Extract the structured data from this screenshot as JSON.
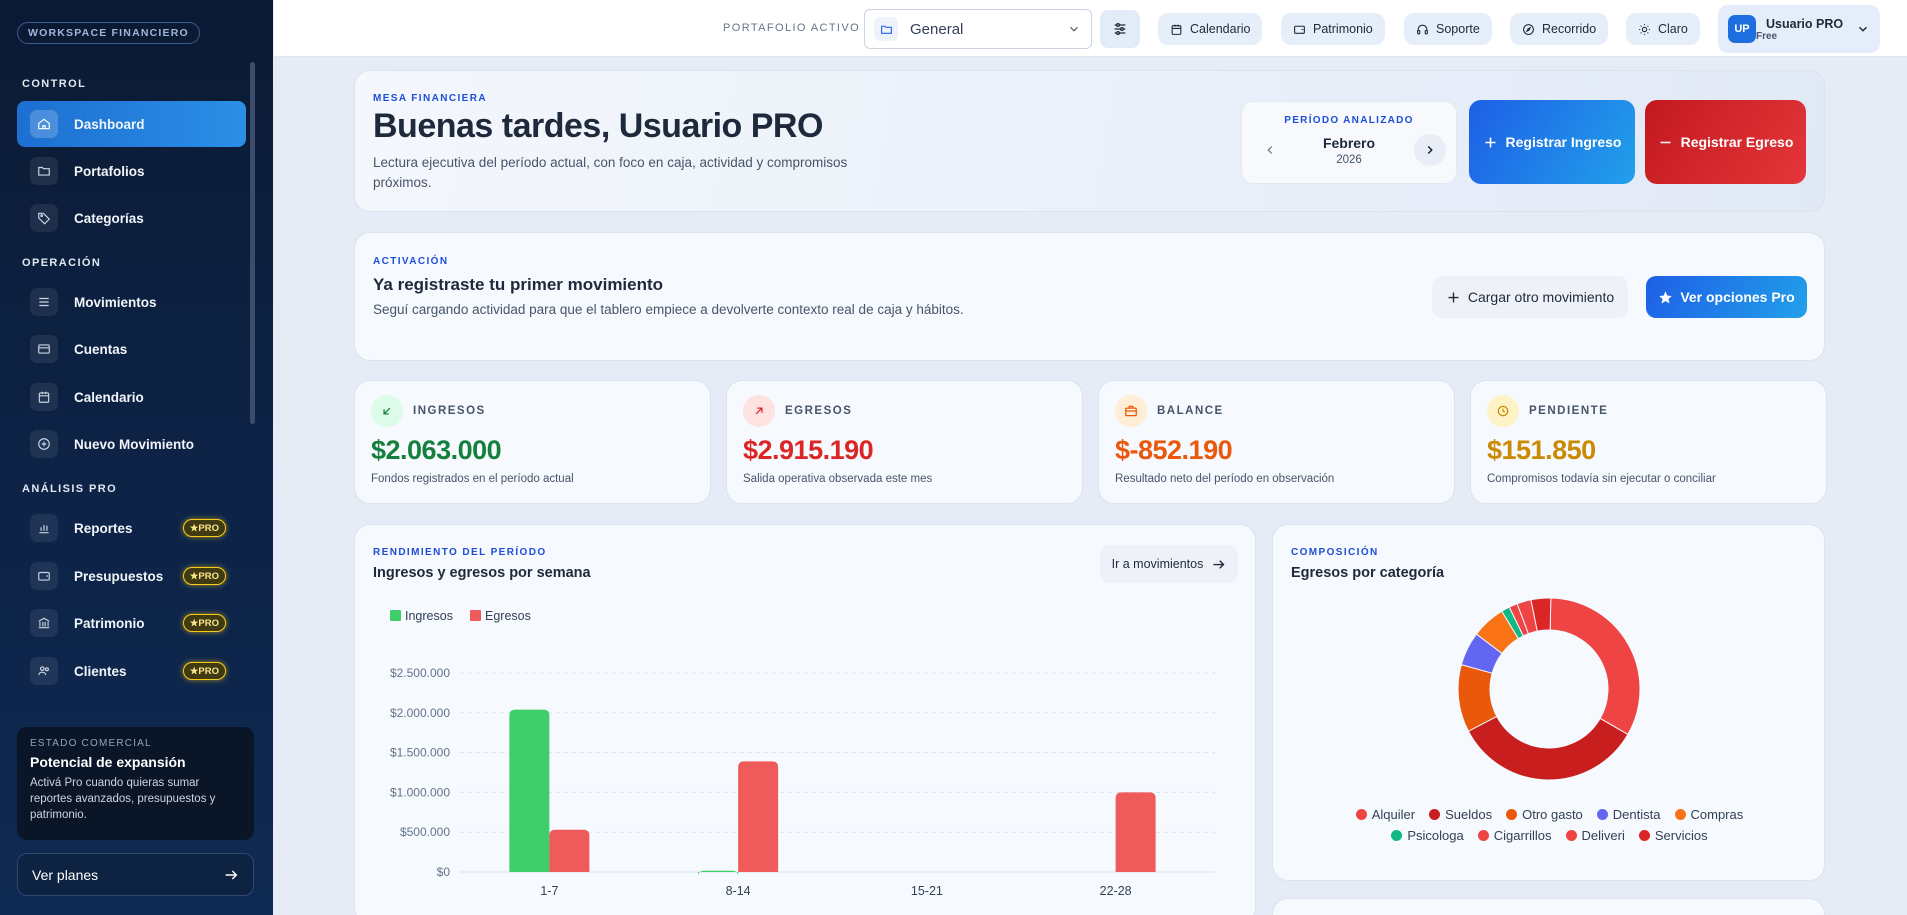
{
  "sidebar": {
    "workspace": "WORKSPACE FINANCIERO",
    "sections": {
      "control": "CONTROL",
      "operacion": "OPERACIÓN",
      "analisis": "ANÁLISIS PRO"
    },
    "items": [
      {
        "label": "Dashboard",
        "icon": "home-icon",
        "active": true
      },
      {
        "label": "Portafolios",
        "icon": "folder-icon"
      },
      {
        "label": "Categorías",
        "icon": "tag-icon"
      },
      {
        "label": "Movimientos",
        "icon": "list-icon"
      },
      {
        "label": "Cuentas",
        "icon": "card-icon"
      },
      {
        "label": "Calendario",
        "icon": "calendar-icon"
      },
      {
        "label": "Nuevo Movimiento",
        "icon": "plus-circle-icon"
      },
      {
        "label": "Reportes",
        "icon": "bar-chart-icon",
        "badge": "PRO"
      },
      {
        "label": "Presupuestos",
        "icon": "wallet-icon",
        "badge": "PRO"
      },
      {
        "label": "Patrimonio",
        "icon": "bank-icon",
        "badge": "PRO"
      },
      {
        "label": "Clientes",
        "icon": "users-icon",
        "badge": "PRO"
      }
    ],
    "promo": {
      "kicker": "ESTADO COMERCIAL",
      "title": "Potencial de expansión",
      "text": "Activá Pro cuando quieras sumar reportes avanzados, presupuestos y patrimonio."
    },
    "plans_label": "Ver planes"
  },
  "topbar": {
    "portfolio_label": "PORTAFOLIO ACTIVO",
    "portfolio_value": "General",
    "pills": [
      "Calendario",
      "Patrimonio",
      "Soporte",
      "Recorrido",
      "Claro"
    ],
    "user": {
      "initials": "UP",
      "name": "Usuario PRO",
      "plan": "Free"
    }
  },
  "hero": {
    "eyebrow": "MESA FINANCIERA",
    "title": "Buenas tardes, Usuario PRO",
    "subtitle": "Lectura ejecutiva del período actual, con foco en caja, actividad y compromisos próximos.",
    "period_label": "PERÍODO ANALIZADO",
    "period_month": "Febrero",
    "period_year": "2026",
    "income_button": "Registrar Ingreso",
    "expense_button": "Registrar Egreso"
  },
  "activation": {
    "eyebrow": "ACTIVACIÓN",
    "title": "Ya registraste tu primer movimiento",
    "text": "Seguí cargando actividad para que el tablero empiece a devolverte contexto real de caja y hábitos.",
    "load_button": "Cargar otro movimiento",
    "pro_button": "Ver opciones Pro"
  },
  "kpis": [
    {
      "label": "INGRESOS",
      "value": "$2.063.000",
      "desc": "Fondos registrados en el período actual",
      "color": "#15803d",
      "bg": "#dcfce7"
    },
    {
      "label": "EGRESOS",
      "value": "$2.915.190",
      "desc": "Salida operativa observada este mes",
      "color": "#dc2626",
      "bg": "#fee2e2"
    },
    {
      "label": "BALANCE",
      "value": "$-852.190",
      "desc": "Resultado neto del período en observación",
      "color": "#ea580c",
      "bg": "#ffedd5"
    },
    {
      "label": "PENDIENTE",
      "value": "$151.850",
      "desc": "Compromisos todavía sin ejecutar o conciliar",
      "color": "#ca8a04",
      "bg": "#fef3c7"
    }
  ],
  "weekly": {
    "eyebrow": "RENDIMIENTO DEL PERÍODO",
    "title": "Ingresos y egresos por semana",
    "button": "Ir a movimientos"
  },
  "composition": {
    "eyebrow": "COMPOSICIÓN",
    "title": "Egresos por categoría"
  },
  "chart_data": [
    {
      "type": "bar",
      "categories": [
        "1-7",
        "8-14",
        "15-21",
        "22-28"
      ],
      "series": [
        {
          "name": "Ingresos",
          "values": [
            2040000,
            15000,
            0,
            0
          ],
          "color": "#3ecf6b"
        },
        {
          "name": "Egresos",
          "values": [
            530000,
            1390000,
            0,
            1000000
          ],
          "color": "#ef5b5b"
        }
      ],
      "yticks": [
        "$0",
        "$500.000",
        "$1.000.000",
        "$1.500.000",
        "$2.000.000",
        "$2.500.000"
      ],
      "ylim": [
        0,
        2500000
      ],
      "legend": "top-left",
      "grid": true
    },
    {
      "type": "pie",
      "labels": [
        "Alquiler",
        "Sueldos",
        "Otro gasto",
        "Dentista",
        "Compras",
        "Psicologa",
        "Cigarrillos",
        "Deliveri",
        "Servicios"
      ],
      "values": [
        33,
        34,
        12,
        6,
        6,
        1.5,
        1.5,
        2.5,
        3.5
      ],
      "colors": [
        "#ef4444",
        "#c81e1e",
        "#ea580c",
        "#6366f1",
        "#f97316",
        "#10b981",
        "#ef4444",
        "#ef4444",
        "#dc2626"
      ],
      "legend": "bottom"
    }
  ]
}
